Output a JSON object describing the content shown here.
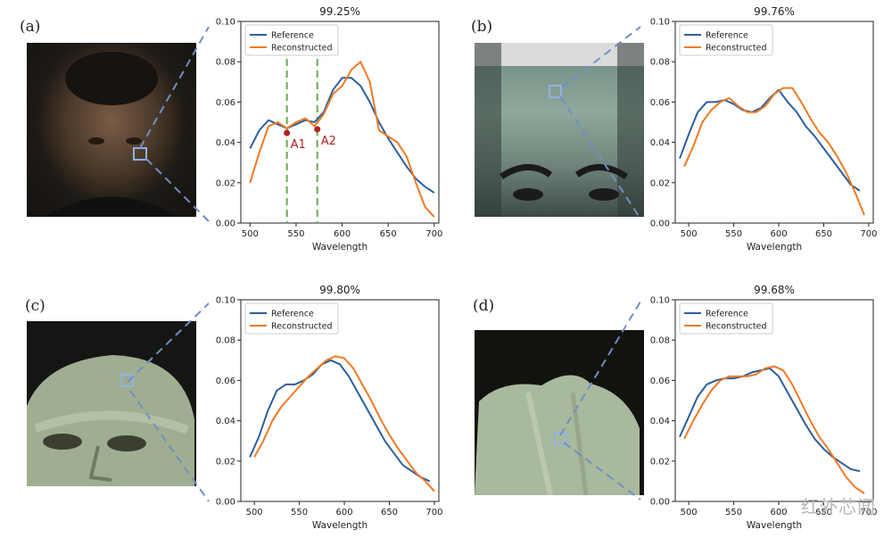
{
  "panels": [
    {
      "label": "(a)",
      "title": "99.25%",
      "annotations": [
        {
          "text": "A1",
          "x": 540,
          "y": 0.0447
        },
        {
          "text": "A2",
          "x": 573,
          "y": 0.0465
        }
      ],
      "vlines": [
        540,
        573
      ]
    },
    {
      "label": "(b)",
      "title": "99.76%"
    },
    {
      "label": "(c)",
      "title": "99.80%"
    },
    {
      "label": "(d)",
      "title": "99.68%"
    }
  ],
  "watermark": "红外芯闻",
  "colors": {
    "reference": "#2c5f9e",
    "reconstructed": "#f07a24",
    "guide": "#6aa84f",
    "marker": "#b22222",
    "accent_link": "#6f8fc4"
  },
  "chart_data": [
    {
      "type": "line",
      "title": "99.25%",
      "xlabel": "Wavelength",
      "ylabel": "",
      "xlim": [
        490,
        705
      ],
      "ylim": [
        0,
        0.1
      ],
      "xticks": [
        500,
        550,
        600,
        650,
        700
      ],
      "yticks": [
        0.0,
        0.02,
        0.04,
        0.06,
        0.08,
        0.1
      ],
      "legend": "top-left",
      "series": [
        {
          "name": "Reference",
          "x": [
            500,
            510,
            520,
            530,
            540,
            550,
            560,
            570,
            580,
            590,
            600,
            610,
            620,
            630,
            640,
            650,
            660,
            670,
            680,
            690,
            700
          ],
          "y": [
            0.037,
            0.046,
            0.051,
            0.049,
            0.047,
            0.049,
            0.051,
            0.05,
            0.055,
            0.066,
            0.072,
            0.072,
            0.068,
            0.06,
            0.05,
            0.042,
            0.035,
            0.028,
            0.022,
            0.018,
            0.015
          ]
        },
        {
          "name": "Reconstructed",
          "x": [
            500,
            510,
            520,
            530,
            540,
            550,
            560,
            570,
            580,
            590,
            600,
            610,
            620,
            630,
            640,
            650,
            660,
            670,
            680,
            690,
            700
          ],
          "y": [
            0.02,
            0.035,
            0.048,
            0.05,
            0.047,
            0.05,
            0.052,
            0.048,
            0.054,
            0.064,
            0.068,
            0.076,
            0.08,
            0.07,
            0.046,
            0.043,
            0.04,
            0.033,
            0.02,
            0.008,
            0.003
          ]
        }
      ]
    },
    {
      "type": "line",
      "title": "99.76%",
      "xlabel": "Wavelength",
      "ylabel": "",
      "xlim": [
        485,
        705
      ],
      "ylim": [
        0,
        0.1
      ],
      "xticks": [
        500,
        550,
        600,
        650,
        700
      ],
      "yticks": [
        0.0,
        0.02,
        0.04,
        0.06,
        0.08,
        0.1
      ],
      "legend": "top-left",
      "series": [
        {
          "name": "Reference",
          "x": [
            490,
            500,
            510,
            520,
            530,
            540,
            550,
            560,
            570,
            580,
            590,
            600,
            610,
            620,
            630,
            640,
            650,
            660,
            670,
            680,
            690
          ],
          "y": [
            0.032,
            0.044,
            0.055,
            0.06,
            0.06,
            0.061,
            0.059,
            0.056,
            0.055,
            0.057,
            0.062,
            0.066,
            0.06,
            0.055,
            0.048,
            0.043,
            0.037,
            0.031,
            0.025,
            0.019,
            0.016
          ]
        },
        {
          "name": "Reconstructed",
          "x": [
            495,
            505,
            515,
            525,
            535,
            545,
            555,
            565,
            575,
            585,
            595,
            605,
            615,
            625,
            635,
            645,
            655,
            665,
            675,
            685,
            695
          ],
          "y": [
            0.028,
            0.038,
            0.05,
            0.056,
            0.06,
            0.062,
            0.058,
            0.055,
            0.055,
            0.058,
            0.064,
            0.067,
            0.067,
            0.06,
            0.052,
            0.045,
            0.04,
            0.033,
            0.025,
            0.015,
            0.004
          ]
        }
      ]
    },
    {
      "type": "line",
      "title": "99.80%",
      "xlabel": "Wavelength",
      "ylabel": "",
      "xlim": [
        485,
        705
      ],
      "ylim": [
        0,
        0.1
      ],
      "xticks": [
        500,
        550,
        600,
        650,
        700
      ],
      "yticks": [
        0.0,
        0.02,
        0.04,
        0.06,
        0.08,
        0.1
      ],
      "legend": "top-left",
      "series": [
        {
          "name": "Reference",
          "x": [
            495,
            505,
            515,
            525,
            535,
            545,
            555,
            565,
            575,
            585,
            595,
            605,
            615,
            625,
            635,
            645,
            655,
            665,
            675,
            685,
            695
          ],
          "y": [
            0.022,
            0.032,
            0.045,
            0.055,
            0.058,
            0.058,
            0.06,
            0.063,
            0.068,
            0.07,
            0.068,
            0.062,
            0.054,
            0.046,
            0.038,
            0.03,
            0.024,
            0.018,
            0.015,
            0.012,
            0.01
          ]
        },
        {
          "name": "Reconstructed",
          "x": [
            500,
            510,
            520,
            530,
            540,
            550,
            560,
            570,
            580,
            590,
            600,
            610,
            620,
            630,
            640,
            650,
            660,
            670,
            680,
            690,
            700
          ],
          "y": [
            0.022,
            0.03,
            0.04,
            0.047,
            0.052,
            0.057,
            0.062,
            0.066,
            0.07,
            0.072,
            0.071,
            0.066,
            0.058,
            0.05,
            0.041,
            0.033,
            0.026,
            0.02,
            0.014,
            0.01,
            0.005
          ]
        }
      ]
    },
    {
      "type": "line",
      "title": "99.68%",
      "xlabel": "Wavelength",
      "ylabel": "",
      "xlim": [
        485,
        705
      ],
      "ylim": [
        0,
        0.1
      ],
      "xticks": [
        500,
        550,
        600,
        650,
        700
      ],
      "yticks": [
        0.0,
        0.02,
        0.04,
        0.06,
        0.08,
        0.1
      ],
      "legend": "top-left",
      "series": [
        {
          "name": "Reference",
          "x": [
            490,
            500,
            510,
            520,
            530,
            540,
            550,
            560,
            570,
            580,
            590,
            600,
            610,
            620,
            630,
            640,
            650,
            660,
            670,
            680,
            690
          ],
          "y": [
            0.032,
            0.042,
            0.052,
            0.058,
            0.06,
            0.061,
            0.061,
            0.062,
            0.064,
            0.065,
            0.066,
            0.062,
            0.054,
            0.046,
            0.038,
            0.031,
            0.026,
            0.022,
            0.019,
            0.016,
            0.015
          ]
        },
        {
          "name": "Reconstructed",
          "x": [
            495,
            505,
            515,
            525,
            535,
            545,
            555,
            565,
            575,
            585,
            595,
            605,
            615,
            625,
            635,
            645,
            655,
            665,
            675,
            685,
            695
          ],
          "y": [
            0.031,
            0.04,
            0.048,
            0.055,
            0.06,
            0.062,
            0.062,
            0.062,
            0.063,
            0.066,
            0.067,
            0.065,
            0.058,
            0.049,
            0.04,
            0.032,
            0.026,
            0.019,
            0.012,
            0.007,
            0.004
          ]
        }
      ]
    }
  ]
}
